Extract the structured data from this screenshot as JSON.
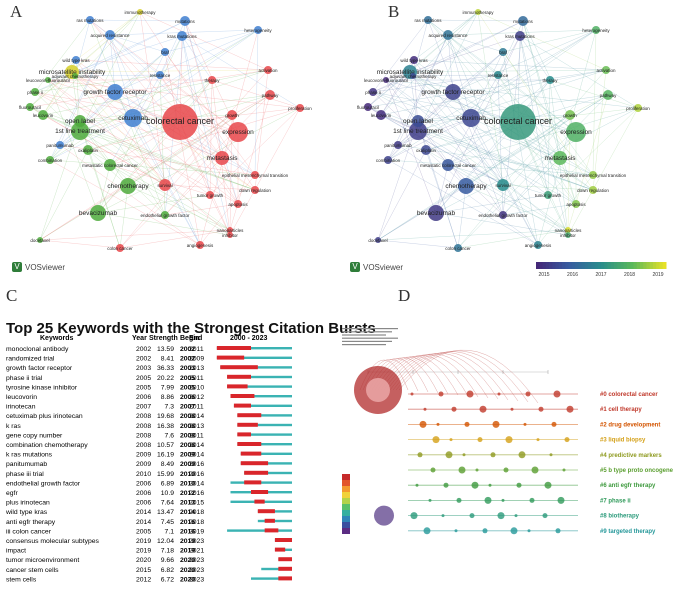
{
  "panels": {
    "a": "A",
    "b": "B",
    "c": "C",
    "d": "D"
  },
  "vos_label": "VOSviewer",
  "network": {
    "clusters": {
      "red": "#e8474a",
      "green": "#4eaa3c",
      "blue": "#3f7fd0",
      "yellow": "#d6cf2a",
      "purple": "#6a4fb0"
    },
    "nodes": [
      {
        "label": "colorectal cancer",
        "cluster": "red",
        "year": 2017.3
      },
      {
        "label": "expression",
        "cluster": "red",
        "year": 2017.8
      },
      {
        "label": "cetuximab",
        "cluster": "blue",
        "year": 2015.6
      },
      {
        "label": "1st line treatment",
        "cluster": "green",
        "year": 2015.4
      },
      {
        "label": "chemotherapy",
        "cluster": "green",
        "year": 2016.0
      },
      {
        "label": "bevacizumab",
        "cluster": "green",
        "year": 2015.3
      },
      {
        "label": "metastasis",
        "cluster": "red",
        "year": 2018.0
      },
      {
        "label": "growth factor receptor",
        "cluster": "blue",
        "year": 2015.5
      },
      {
        "label": "microsatellite instability",
        "cluster": "yellow",
        "year": 2016.8
      },
      {
        "label": "open label",
        "cluster": "green",
        "year": 2015.7
      },
      {
        "label": "kras mutations",
        "cluster": "blue",
        "year": 2015.4
      },
      {
        "label": "mutations",
        "cluster": "blue",
        "year": 2016.3
      },
      {
        "label": "acquired resistance",
        "cluster": "blue",
        "year": 2016.5
      },
      {
        "label": "survival",
        "cluster": "red",
        "year": 2017.0
      },
      {
        "label": "growth",
        "cluster": "red",
        "year": 2018.2
      },
      {
        "label": "proliferation",
        "cluster": "red",
        "year": 2018.6
      },
      {
        "label": "apoptosis",
        "cluster": "red",
        "year": 2018.3
      },
      {
        "label": "angiogenesis",
        "cluster": "red",
        "year": 2016.8
      },
      {
        "label": "leucovorin",
        "cluster": "green",
        "year": 2015.1
      },
      {
        "label": "oxaliplatin",
        "cluster": "green",
        "year": 2015.6
      },
      {
        "label": "tumor growth",
        "cluster": "red",
        "year": 2017.4
      },
      {
        "label": "phase ii",
        "cluster": "green",
        "year": 2015.2
      },
      {
        "label": "combination",
        "cluster": "green",
        "year": 2015.5
      },
      {
        "label": "activation",
        "cluster": "red",
        "year": 2018.1
      },
      {
        "label": "pathway",
        "cluster": "red",
        "year": 2017.9
      },
      {
        "label": "metastatic colorectal cancer",
        "cluster": "green",
        "year": 2015.9
      },
      {
        "label": "endothelial growth factor",
        "cluster": "green",
        "year": 2015.2
      },
      {
        "label": "heterogeneity",
        "cluster": "blue",
        "year": 2017.8
      },
      {
        "label": "fluorouracil",
        "cluster": "green",
        "year": 2014.9
      },
      {
        "label": "colon cancer",
        "cluster": "red",
        "year": 2016.5
      },
      {
        "label": "therapy",
        "cluster": "red",
        "year": 2017.0
      },
      {
        "label": "resistance",
        "cluster": "blue",
        "year": 2016.9
      },
      {
        "label": "epithelial mesenchymal transition",
        "cluster": "red",
        "year": 2018.4
      },
      {
        "label": "down regulation",
        "cluster": "red",
        "year": 2018.5
      },
      {
        "label": "nanoparticles",
        "cluster": "red",
        "year": 2018.9
      },
      {
        "label": "inhibitor",
        "cluster": "red",
        "year": 2017.6
      },
      {
        "label": "ras mutations",
        "cluster": "blue",
        "year": 2016.4
      },
      {
        "label": "braf",
        "cluster": "blue",
        "year": 2016.6
      },
      {
        "label": "immunotherapy",
        "cluster": "yellow",
        "year": 2018.7
      },
      {
        "label": "docetaxel",
        "cluster": "green",
        "year": 2015.4
      },
      {
        "label": "leucovorin-fluorouracil",
        "cluster": "green",
        "year": 2015.0
      },
      {
        "label": "adjuvant chemotherapy",
        "cluster": "green",
        "year": 2015.6
      },
      {
        "label": "panitumumab",
        "cluster": "blue",
        "year": 2015.3
      },
      {
        "label": "wild type kras",
        "cluster": "blue",
        "year": 2015.1
      }
    ],
    "overlay_scale": [
      2015,
      2016,
      2017,
      2018,
      2019
    ]
  },
  "burst": {
    "title": "Top 25 Keywords with the Strongest Citation Bursts",
    "header": {
      "keywords": "Keywords",
      "year": "Year",
      "strength": "Strength",
      "begin": "Begin",
      "end": "End",
      "range": "2000 - 2023"
    },
    "range_start": 2000,
    "range_end": 2023,
    "rows": [
      {
        "keyword": "monoclonal antibody",
        "year": 2002,
        "strength": "13.59",
        "begin": 2002,
        "end": 2011
      },
      {
        "keyword": "randomized trial",
        "year": 2002,
        "strength": "8.41",
        "begin": 2002,
        "end": 2009
      },
      {
        "keyword": "growth factor receptor",
        "year": 2003,
        "strength": "36.33",
        "begin": 2003,
        "end": 2013
      },
      {
        "keyword": "phase ii trial",
        "year": 2005,
        "strength": "20.22",
        "begin": 2005,
        "end": 2011
      },
      {
        "keyword": "tyrosine kinase inhibitor",
        "year": 2005,
        "strength": "7.99",
        "begin": 2005,
        "end": 2010
      },
      {
        "keyword": "leucovorin",
        "year": 2006,
        "strength": "8.86",
        "begin": 2006,
        "end": 2012
      },
      {
        "keyword": "irinotecan",
        "year": 2007,
        "strength": "7.3",
        "begin": 2007,
        "end": 2011
      },
      {
        "keyword": "cetuximab plus irinotecan",
        "year": 2008,
        "strength": "19.68",
        "begin": 2008,
        "end": 2014
      },
      {
        "keyword": "k ras",
        "year": 2008,
        "strength": "16.38",
        "begin": 2008,
        "end": 2013
      },
      {
        "keyword": "gene copy number",
        "year": 2008,
        "strength": "7.6",
        "begin": 2008,
        "end": 2011
      },
      {
        "keyword": "combination chemotherapy",
        "year": 2008,
        "strength": "10.57",
        "begin": 2008,
        "end": 2014
      },
      {
        "keyword": "k ras mutations",
        "year": 2009,
        "strength": "16.19",
        "begin": 2009,
        "end": 2014
      },
      {
        "keyword": "panitumumab",
        "year": 2009,
        "strength": "8.49",
        "begin": 2009,
        "end": 2016
      },
      {
        "keyword": "phase iii trial",
        "year": 2010,
        "strength": "15.99",
        "begin": 2010,
        "end": 2016
      },
      {
        "keyword": "endothelial growth factor",
        "year": 2006,
        "strength": "6.89",
        "begin": 2010,
        "end": 2014
      },
      {
        "keyword": "egfr",
        "year": 2006,
        "strength": "10.9",
        "begin": 2012,
        "end": 2016
      },
      {
        "keyword": "plus irinotecan",
        "year": 2006,
        "strength": "7.64",
        "begin": 2013,
        "end": 2015
      },
      {
        "keyword": "wild type kras",
        "year": 2014,
        "strength": "13.47",
        "begin": 2014,
        "end": 2018
      },
      {
        "keyword": "anti egfr therapy",
        "year": 2014,
        "strength": "7.45",
        "begin": 2016,
        "end": 2018
      },
      {
        "keyword": "iii colon cancer",
        "year": 2005,
        "strength": "7.1",
        "begin": 2016,
        "end": 2019
      },
      {
        "keyword": "consensus molecular subtypes",
        "year": 2019,
        "strength": "12.04",
        "begin": 2019,
        "end": 2023
      },
      {
        "keyword": "impact",
        "year": 2019,
        "strength": "7.18",
        "begin": 2019,
        "end": 2021
      },
      {
        "keyword": "tumor microenvironment",
        "year": 2020,
        "strength": "9.66",
        "begin": 2020,
        "end": 2023
      },
      {
        "keyword": "cancer stem cells",
        "year": 2015,
        "strength": "6.82",
        "begin": 2020,
        "end": 2023
      },
      {
        "keyword": "stem cells",
        "year": 2012,
        "strength": "6.72",
        "begin": 2020,
        "end": 2023
      }
    ]
  },
  "timeline": {
    "clusters": [
      {
        "label": "#0 colorectal cancer",
        "color": "#c0392b"
      },
      {
        "label": "#1 cell therapy",
        "color": "#c0392b"
      },
      {
        "label": "#2 drug development",
        "color": "#d35400"
      },
      {
        "label": "#3 liquid biopsy",
        "color": "#d4a017"
      },
      {
        "label": "#4 predictive markers",
        "color": "#8e9a1f"
      },
      {
        "label": "#5 b type proto oncogene",
        "color": "#5a9e2f"
      },
      {
        "label": "#6 anti egfr therapy",
        "color": "#3e9a3e"
      },
      {
        "label": "#7 phase ii",
        "color": "#2f9a5a"
      },
      {
        "label": "#8 biotherapy",
        "color": "#2a9a7a"
      },
      {
        "label": "#9 targeted therapy",
        "color": "#26989a"
      }
    ]
  },
  "chart_data": [
    {
      "type": "scatter",
      "title": "",
      "description_kind": "keyword co-occurrence network (cluster view)",
      "labels_shown": [
        "colorectal cancer",
        "expression",
        "cetuximab",
        "1st line treatment",
        "chemotherapy",
        "bevacizumab",
        "metastasis",
        "growth factor receptor",
        "microsatellite instability",
        "open label"
      ]
    },
    {
      "type": "scatter",
      "title": "",
      "description_kind": "keyword co-occurrence network (overlay by average year)",
      "color_scale": [
        2015,
        2016,
        2017,
        2018,
        2019
      ]
    },
    {
      "type": "table",
      "title": "Top 25 Keywords with the Strongest Citation Bursts",
      "columns": [
        "Keywords",
        "Year",
        "Strength",
        "Begin",
        "End"
      ],
      "x_range": [
        2000,
        2023
      ]
    },
    {
      "type": "scatter",
      "title": "",
      "description_kind": "timeline view of co-citation clusters",
      "series": [
        {
          "name": "#0 colorectal cancer"
        },
        {
          "name": "#1 cell therapy"
        },
        {
          "name": "#2 drug development"
        },
        {
          "name": "#3 liquid biopsy"
        },
        {
          "name": "#4 predictive markers"
        },
        {
          "name": "#5 b type proto oncogene"
        },
        {
          "name": "#6 anti egfr therapy"
        },
        {
          "name": "#7 phase ii"
        },
        {
          "name": "#8 biotherapy"
        },
        {
          "name": "#9 targeted therapy"
        }
      ]
    }
  ]
}
